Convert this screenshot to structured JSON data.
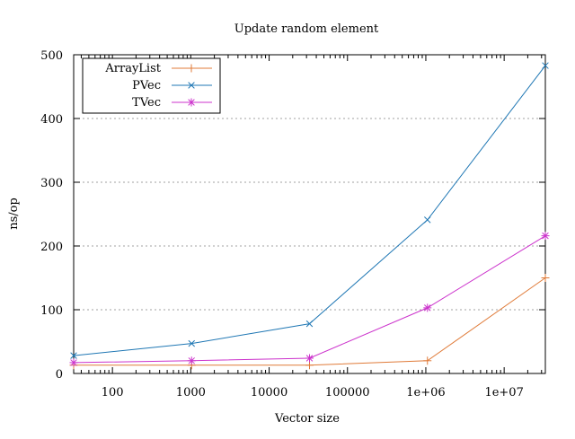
{
  "chart_data": {
    "type": "line",
    "title": "Update random element",
    "xlabel": "Vector size",
    "ylabel": "ns/op",
    "x_scale": "log",
    "xlim": [
      32,
      33554432
    ],
    "ylim": [
      0,
      500
    ],
    "x_ticks": [
      {
        "value": 100,
        "label": "100"
      },
      {
        "value": 1000,
        "label": "1000"
      },
      {
        "value": 10000,
        "label": "10000"
      },
      {
        "value": 100000,
        "label": "100000"
      },
      {
        "value": 1000000,
        "label": "1e+06"
      },
      {
        "value": 10000000,
        "label": "1e+07"
      }
    ],
    "y_ticks": [
      {
        "value": 0,
        "label": "0"
      },
      {
        "value": 100,
        "label": "100"
      },
      {
        "value": 200,
        "label": "200"
      },
      {
        "value": 300,
        "label": "300"
      },
      {
        "value": 400,
        "label": "400"
      },
      {
        "value": 500,
        "label": "500"
      }
    ],
    "grid": "horizontal dotted",
    "legend_position": "top-left",
    "x": [
      32,
      1024,
      32768,
      1048576,
      33554432
    ],
    "series": [
      {
        "name": "ArrayList",
        "color": "#e07b39",
        "marker": "plus",
        "values": [
          13,
          13,
          13,
          20,
          150
        ]
      },
      {
        "name": "PVec",
        "color": "#1f77b4",
        "marker": "cross",
        "values": [
          28,
          47,
          78,
          241,
          483
        ]
      },
      {
        "name": "TVec",
        "color": "#cc33cc",
        "marker": "star",
        "values": [
          17,
          20,
          24,
          103,
          216
        ]
      }
    ]
  }
}
